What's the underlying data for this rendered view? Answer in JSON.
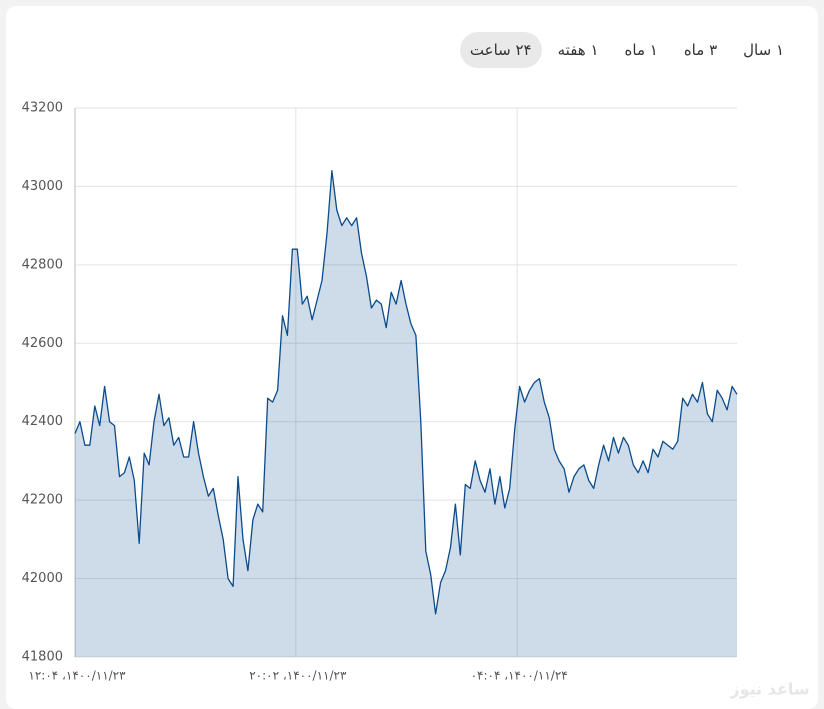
{
  "tabs": {
    "items": [
      "۲۴ ساعت",
      "۱ هفته",
      "۱ ماه",
      "۳ ماه",
      "۱ سال"
    ],
    "selected": 0
  },
  "watermark": "ساعد نیوز",
  "chart_data": {
    "type": "area",
    "values": [
      42370,
      42400,
      42340,
      42340,
      42440,
      42390,
      42490,
      42400,
      42390,
      42260,
      42270,
      42310,
      42250,
      42090,
      42320,
      42290,
      42400,
      42470,
      42390,
      42410,
      42340,
      42360,
      42310,
      42310,
      42400,
      42320,
      42260,
      42210,
      42230,
      42160,
      42100,
      42000,
      41980,
      42260,
      42100,
      42020,
      42150,
      42190,
      42170,
      42460,
      42450,
      42480,
      42670,
      42620,
      42840,
      42840,
      42700,
      42720,
      42660,
      42710,
      42760,
      42880,
      43040,
      42940,
      42900,
      42920,
      42900,
      42920,
      42830,
      42770,
      42690,
      42710,
      42700,
      42640,
      42730,
      42700,
      42760,
      42700,
      42650,
      42620,
      42400,
      42070,
      42010,
      41910,
      41990,
      42020,
      42080,
      42190,
      42060,
      42240,
      42230,
      42300,
      42250,
      42220,
      42280,
      42190,
      42260,
      42180,
      42230,
      42380,
      42490,
      42450,
      42480,
      42500,
      42510,
      42450,
      42410,
      42330,
      42300,
      42280,
      42220,
      42260,
      42280,
      42290,
      42250,
      42230,
      42290,
      42340,
      42300,
      42360,
      42320,
      42360,
      42340,
      42290,
      42270,
      42300,
      42270,
      42330,
      42310,
      42350,
      42340,
      42330,
      42350,
      42460,
      42440,
      42470,
      42450,
      42500,
      42420,
      42400,
      42480,
      42460,
      42430,
      42490,
      42470
    ],
    "color": "#0b4b8c",
    "xlim": [
      0,
      134
    ],
    "xticks": [
      {
        "value": 0,
        "label": "۱۲:۰۴ ،۱۴۰۰/۱۱/۲۳"
      },
      {
        "value": 44.7,
        "label": "۲۰:۰۲ ،۱۴۰۰/۱۱/۲۳"
      },
      {
        "value": 89.5,
        "label": "۰۴:۰۴ ،۱۴۰۰/۱۱/۲۴"
      }
    ],
    "ylim": [
      41800,
      43200
    ],
    "yticks": [
      41800,
      42000,
      42200,
      42400,
      42600,
      42800,
      43000,
      43200
    ],
    "grid": true
  }
}
